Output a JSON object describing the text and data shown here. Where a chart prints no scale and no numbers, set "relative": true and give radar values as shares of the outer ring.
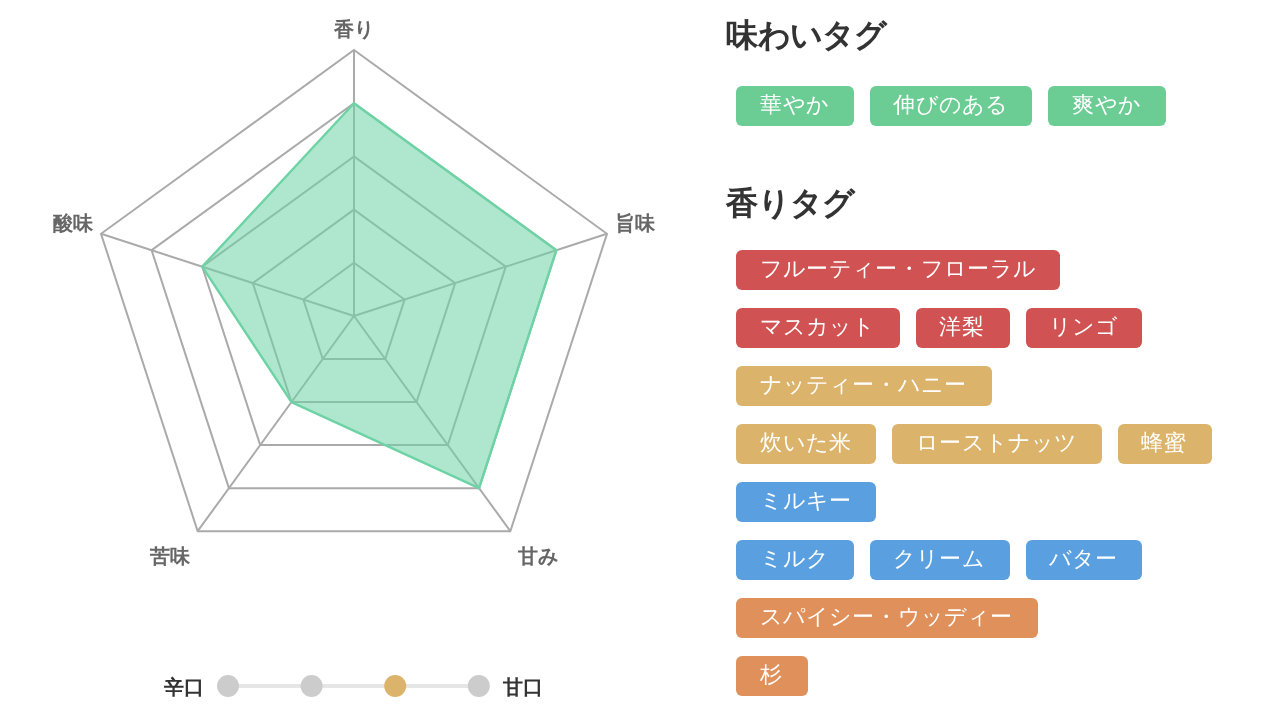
{
  "chart_data": [
    {
      "type": "radar",
      "categories": [
        "香り",
        "旨味",
        "甘み",
        "苦味",
        "酸味"
      ],
      "relative": true,
      "grid": true,
      "series": [
        {
          "color": "#6dd3a5",
          "values": [
            0.8,
            0.8,
            0.8,
            0.4,
            0.6
          ]
        }
      ]
    },
    {
      "type": "other",
      "annotations": [
        "辛口",
        "甘口"
      ],
      "categories": [
        null,
        null,
        null,
        null
      ],
      "colors": [
        "#cccccc",
        "#cccccc",
        "#dcb36b",
        "#cccccc"
      ]
    },
    {
      "type": "other",
      "title": "味わいタグ",
      "categories": [
        "華やか",
        "伸びのある",
        "爽やか"
      ],
      "colors": [
        "#6bcc94",
        "#6bcc94",
        "#6bcc94"
      ]
    },
    {
      "type": "other",
      "title": "香りタグ",
      "categories": [
        "フルーティー・フローラル"
      ],
      "colors": [
        "#d05252"
      ]
    },
    {
      "type": "other",
      "categories": [
        "マスカット",
        "洋梨",
        "リンゴ"
      ],
      "colors": [
        "#d05252",
        "#d05252",
        "#d05252"
      ]
    },
    {
      "type": "other",
      "categories": [
        "ナッティー・ハニー"
      ],
      "colors": [
        "#dcb36b"
      ]
    },
    {
      "type": "other",
      "categories": [
        "炊いた米",
        "ローストナッツ",
        "蜂蜜"
      ],
      "colors": [
        "#dcb36b",
        "#dcb36b",
        "#dcb36b"
      ]
    },
    {
      "type": "other",
      "categories": [
        "ミルキー"
      ],
      "colors": [
        "#5aa0e0"
      ]
    },
    {
      "type": "other",
      "categories": [
        "ミルク",
        "クリーム",
        "バター"
      ],
      "colors": [
        "#5aa0e0",
        "#5aa0e0",
        "#5aa0e0"
      ]
    },
    {
      "type": "other",
      "categories": [
        "スパイシー・ウッディー"
      ],
      "colors": [
        "#e0905a"
      ]
    },
    {
      "type": "other",
      "categories": [
        "杉"
      ],
      "colors": [
        "#e0905a"
      ]
    }
  ]
}
